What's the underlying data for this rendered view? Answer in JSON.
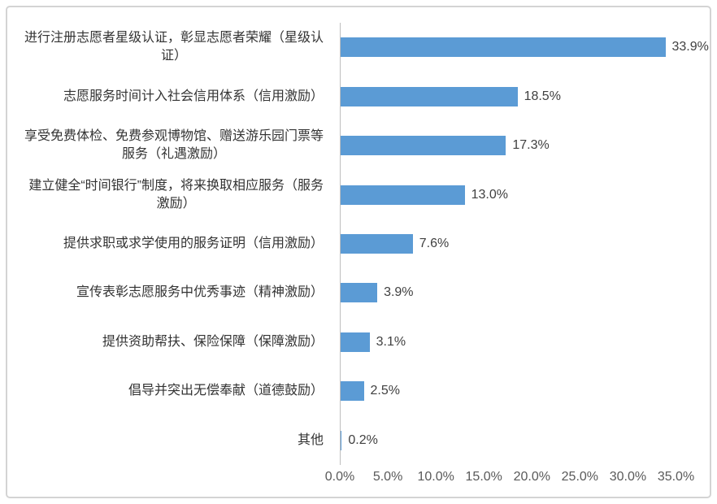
{
  "chart_data": {
    "type": "bar",
    "orientation": "horizontal",
    "title": "",
    "xlabel": "",
    "ylabel": "",
    "legend": "none",
    "gridlines": "off",
    "xlim": [
      0,
      35
    ],
    "categories": [
      "进行注册志愿者星级认证，彰显志愿者荣耀（星级认\n证）",
      "志愿服务时间计入社会信用体系（信用激励）",
      "享受免费体检、免费参观博物馆、赠送游乐园门票等\n服务（礼遇激励）",
      "建立健全“时间银行”制度，将来换取相应服务（服务\n激励）",
      "提供求职或求学使用的服务证明（信用激励）",
      "宣传表彰志愿服务中优秀事迹（精神激励）",
      "提供资助帮扶、保险保障（保障激励）",
      "倡导并突出无偿奉献（道德鼓励）",
      "其他"
    ],
    "values": [
      33.9,
      18.5,
      17.3,
      13.0,
      7.6,
      3.9,
      3.1,
      2.5,
      0.2
    ],
    "value_labels": [
      "33.9%",
      "18.5%",
      "17.3%",
      "13.0%",
      "7.6%",
      "3.9%",
      "3.1%",
      "2.5%",
      "0.2%"
    ],
    "x_tick_labels": [
      "0.0%",
      "5.0%",
      "10.0%",
      "15.0%",
      "20.0%",
      "25.0%",
      "30.0%",
      "35.0%"
    ],
    "colors": {
      "bar": "#5B9BD5",
      "axis_line": "#BFBFBF",
      "category_label": "#333333",
      "value_label": "#404040",
      "tick_label": "#595959",
      "chart_border": "#D4D4D4",
      "background": "#FFFFFF"
    }
  }
}
